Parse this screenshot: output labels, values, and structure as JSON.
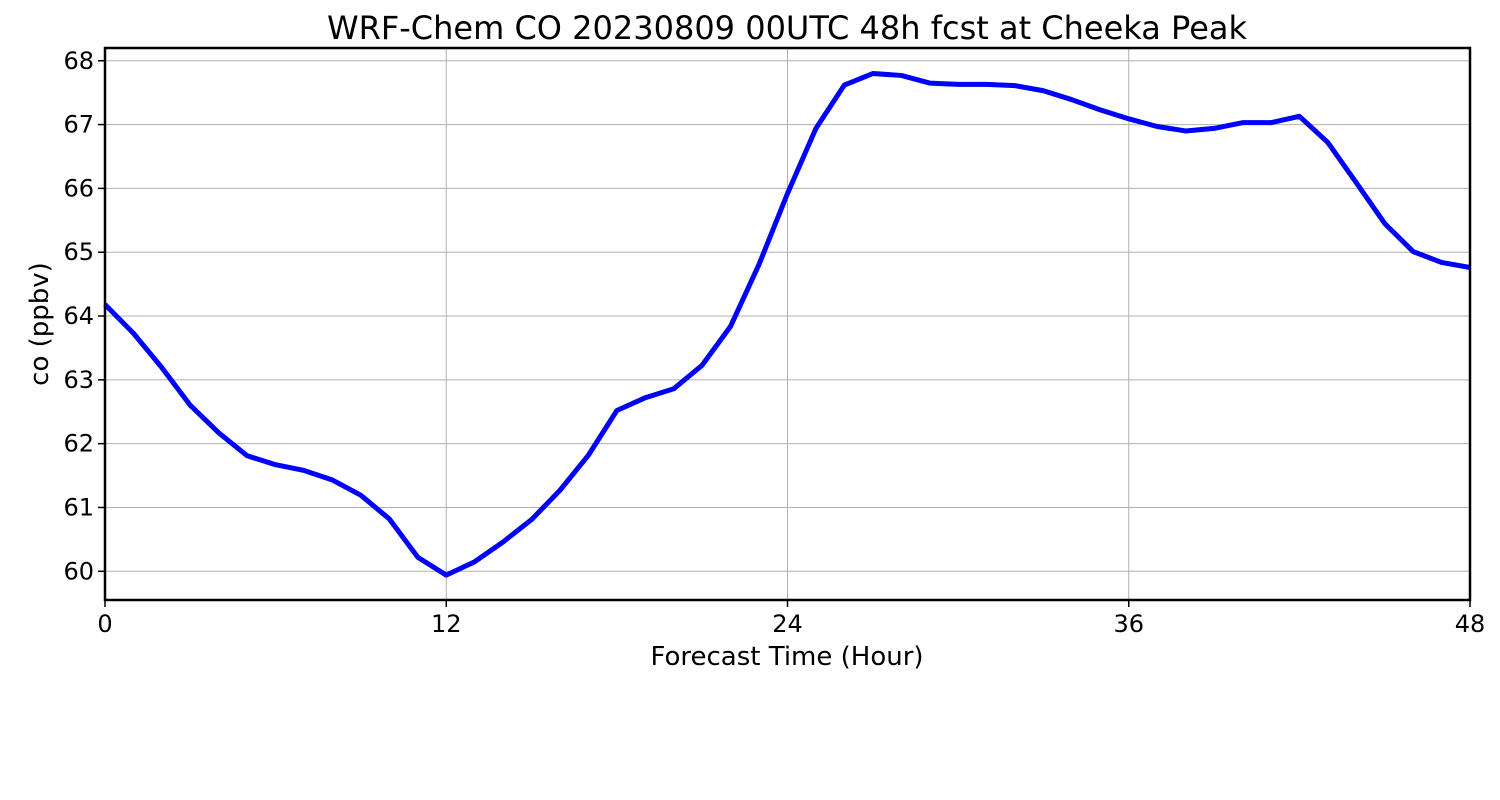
{
  "chart_data": {
    "type": "line",
    "title": "WRF-Chem CO  20230809 00UTC 48h fcst at Cheeka Peak",
    "xlabel": "Forecast Time (Hour)",
    "ylabel": "co  (ppbv)",
    "xlim": [
      0,
      48
    ],
    "ylim": [
      59.55,
      68.2
    ],
    "xticks": [
      0,
      12,
      24,
      36,
      48
    ],
    "yticks": [
      60,
      61,
      62,
      63,
      64,
      65,
      66,
      67,
      68
    ],
    "grid": true,
    "legend": "none",
    "series": [
      {
        "color": "#0000ff",
        "x": [
          0,
          1,
          2,
          3,
          4,
          5,
          6,
          7,
          8,
          9,
          10,
          11,
          12,
          13,
          14,
          15,
          16,
          17,
          18,
          19,
          20,
          21,
          22,
          23,
          24,
          25,
          26,
          27,
          28,
          29,
          30,
          31,
          32,
          33,
          34,
          35,
          36,
          37,
          38,
          39,
          40,
          41,
          42,
          43,
          44,
          45,
          46,
          47,
          48
        ],
        "y": [
          64.18,
          63.73,
          63.19,
          62.6,
          62.17,
          61.81,
          61.67,
          61.58,
          61.43,
          61.19,
          60.82,
          60.22,
          59.94,
          60.15,
          60.46,
          60.81,
          61.27,
          61.82,
          62.52,
          62.72,
          62.86,
          63.23,
          63.84,
          64.81,
          65.92,
          66.94,
          67.62,
          67.8,
          67.77,
          67.65,
          67.63,
          67.63,
          67.61,
          67.53,
          67.39,
          67.23,
          67.09,
          66.97,
          66.9,
          66.94,
          67.03,
          67.03,
          67.13,
          66.72,
          66.09,
          65.45,
          65.01,
          64.84,
          64.76
        ]
      }
    ]
  }
}
